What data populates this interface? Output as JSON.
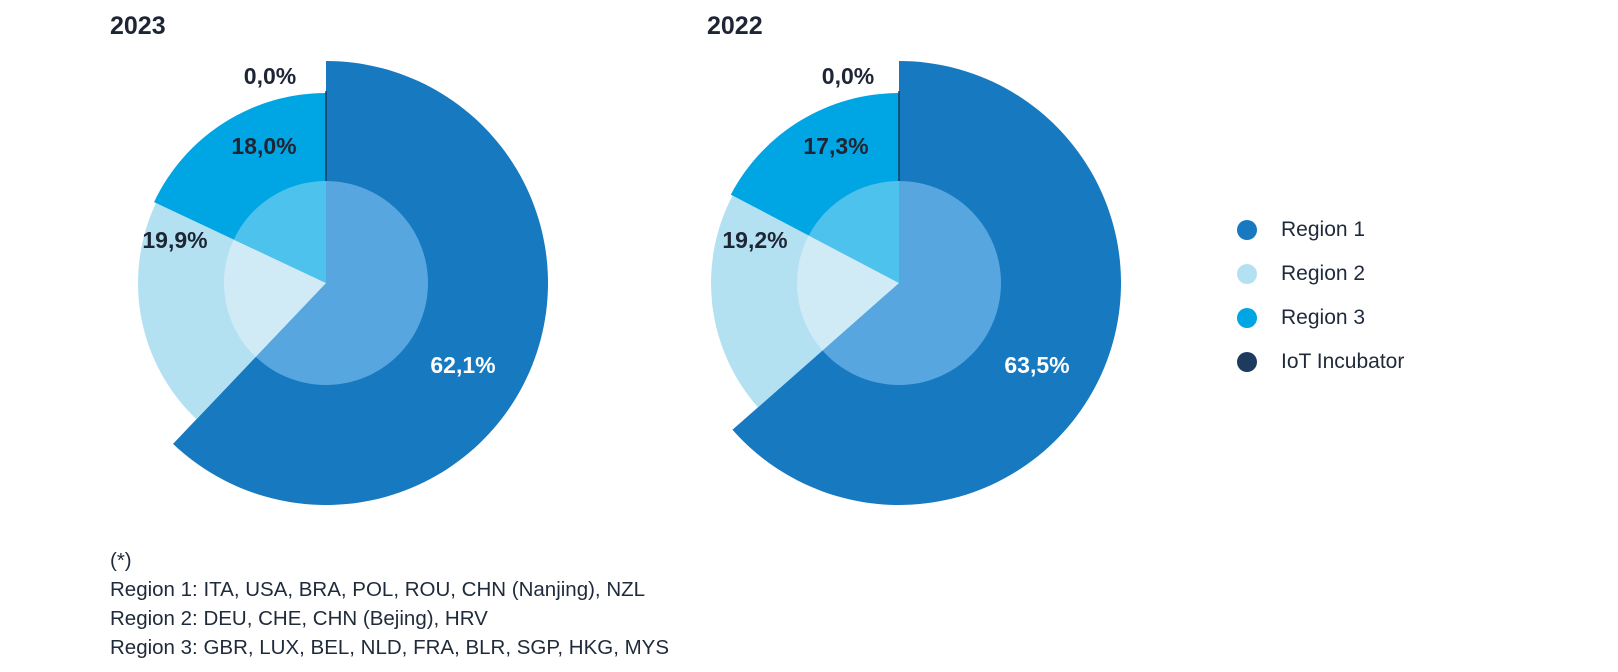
{
  "chart_data": [
    {
      "type": "pie",
      "title": "2023",
      "categories": [
        "Region 1",
        "Region 2",
        "Region 3",
        "IoT Incubator"
      ],
      "values": [
        62.1,
        19.9,
        18.0,
        0.0
      ],
      "labels": [
        "62,1%",
        "19,9%",
        "18,0%",
        "0,0%"
      ]
    },
    {
      "type": "pie",
      "title": "2022",
      "categories": [
        "Region 1",
        "Region 2",
        "Region 3",
        "IoT Incubator"
      ],
      "values": [
        63.5,
        19.2,
        17.3,
        0.0
      ],
      "labels": [
        "63,5%",
        "19,2%",
        "17,3%",
        "0,0%"
      ]
    }
  ],
  "legend": {
    "position": "right",
    "items": [
      {
        "label": "Region 1",
        "color": "#1779bf"
      },
      {
        "label": "Region 2",
        "color": "#b3e1f1"
      },
      {
        "label": "Region 3",
        "color": "#00a5e3"
      },
      {
        "label": "IoT Incubator",
        "color": "#1d3a5f"
      }
    ]
  },
  "colors": {
    "outer": [
      "#1779bf",
      "#b3e1f1",
      "#00a5e3",
      "#1d3a5f"
    ],
    "inner": [
      "#58a6df",
      "#d1ebf6",
      "#4cc2ed",
      "#1d3a5f"
    ],
    "label_dark": "#1e2535",
    "label_light": "#ffffff"
  },
  "footnote": {
    "marker": "(*)",
    "lines": [
      "Region 1: ITA, USA, BRA, POL, ROU, CHN (Nanjing), NZL",
      "Region 2: DEU, CHE, CHN (Bejing), HRV",
      "Region 3: GBR, LUX, BEL, NLD, FRA, BLR, SGP, HKG, MYS"
    ]
  }
}
